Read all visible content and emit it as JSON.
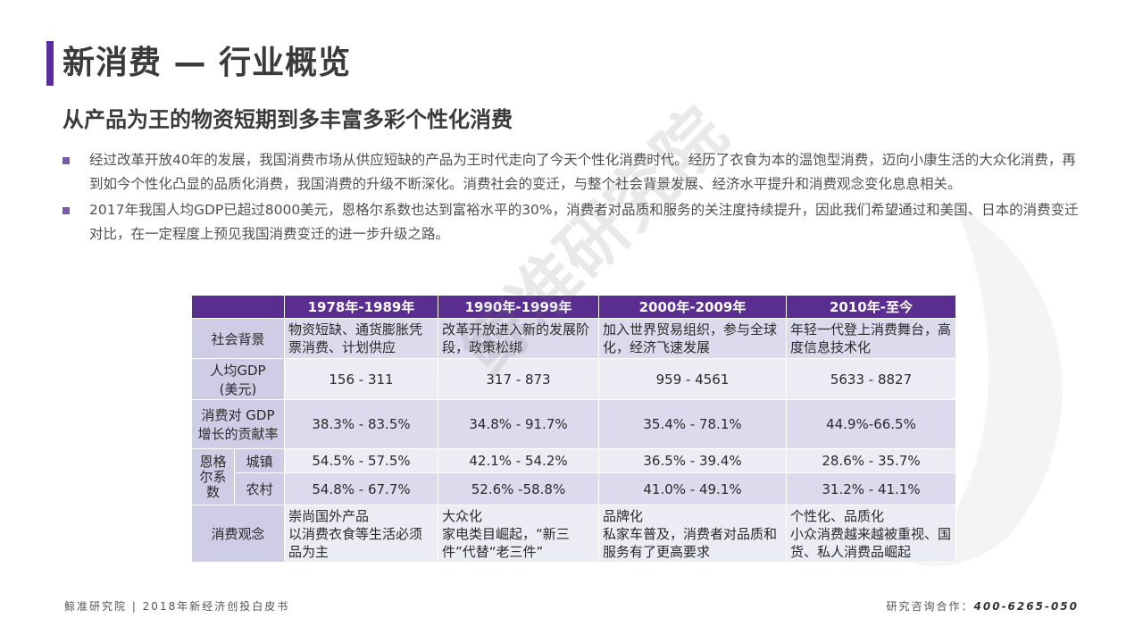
{
  "title": "新消费 — 行业概览",
  "subtitle": "从产品为王的物资短期到多丰富多彩个性化消费",
  "bullets": [
    "经过改革开放40年的发展，我国消费市场从供应短缺的产品为王时代走向了今天个性化消费时代。经历了衣食为本的温饱型消费，迈向小康生活的大众化消费，再到如今个性化凸显的品质化消费，我国消费的升级不断深化。消费社会的变迁，与整个社会背景发展、经济水平提升和消费观念变化息息相关。",
    "2017年我国人均GDP已超过8000美元，恩格尔系数也达到富裕水平的30%，消费者对品质和服务的关注度持续提升，因此我们希望通过和美国、日本的消费变迁对比，在一定程度上预见我国消费变迁的进一步升级之路。"
  ],
  "watermark": "鲸准研究院",
  "table": {
    "headers": [
      "1978年-1989年",
      "1990年-1999年",
      "2000年-2009年",
      "2010年-至今"
    ],
    "social": {
      "label": "社会背景",
      "cells": [
        "物资短缺、通货膨胀凭票消费、计划供应",
        "改革开放进入新的发展阶段，政策松绑",
        "加入世界贸易组织，参与全球化，经济飞速发展",
        "年轻一代登上消费舞台，高度信息技术化"
      ]
    },
    "gdp": {
      "label_line1": "人均GDP",
      "label_line2": "(美元)",
      "cells": [
        "156 - 311",
        "317 - 873",
        "959 - 4561",
        "5633 - 8827"
      ]
    },
    "contribution": {
      "label_line1": "消费对 GDP",
      "label_line2": "增长的贡献率",
      "cells": [
        "38.3% - 83.5%",
        "34.8% - 91.7%",
        "35.4% - 78.1%",
        "44.9%-66.5%"
      ]
    },
    "engel": {
      "label_lines": [
        "恩格",
        "尔系",
        "数"
      ],
      "urban": {
        "label": "城镇",
        "cells": [
          "54.5% - 57.5%",
          "42.1% - 54.2%",
          "36.5% - 39.4%",
          "28.6% - 35.7%"
        ]
      },
      "rural": {
        "label": "农村",
        "cells": [
          "54.8% - 67.7%",
          "52.6% -58.8%",
          "41.0% - 49.1%",
          "31.2% - 41.1%"
        ]
      }
    },
    "concept": {
      "label": "消费观念",
      "cells": [
        [
          "崇尚国外产品",
          "以消费衣食等生活必须品为主"
        ],
        [
          "大众化",
          "家电类目崛起，“新三件”代替“老三件”"
        ],
        [
          "品牌化",
          "私家车普及，消费者对品质和服务有了更高要求"
        ],
        [
          "个性化、品质化",
          "小众消费越来越被重视、国货、私人消费品崛起"
        ]
      ]
    }
  },
  "footer": {
    "left": "鲸准研究院 | 2018年新经济创投白皮书",
    "right_label": "研究咨询合作：",
    "phone": "400-6265-050"
  }
}
